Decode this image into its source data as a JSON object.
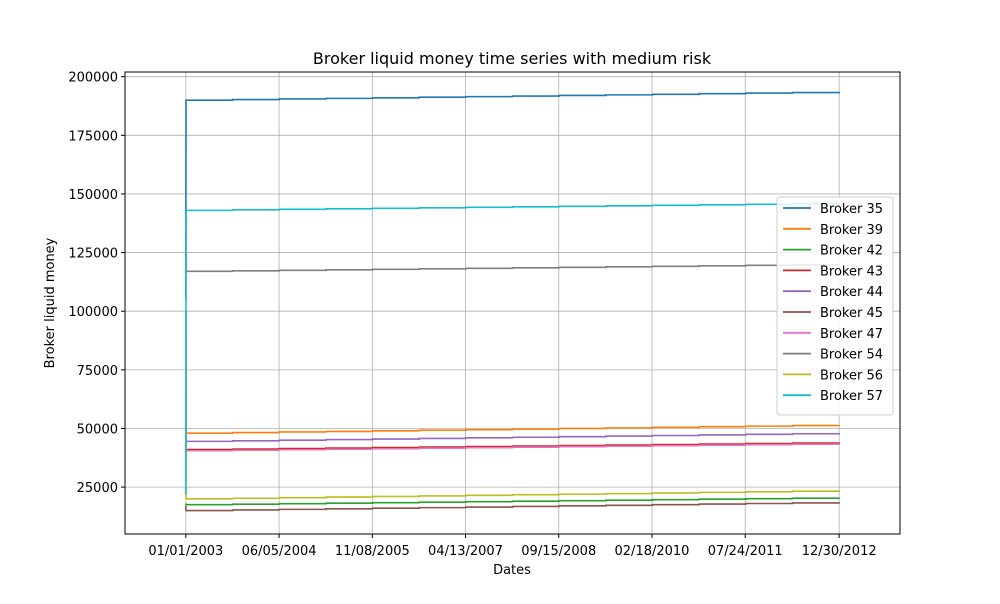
{
  "chart_data": {
    "type": "line",
    "title": "Broker liquid money time series with medium risk",
    "xlabel": "Dates",
    "ylabel": "Broker liquid money",
    "x_ticks": [
      "01/01/2003",
      "06/05/2004",
      "11/08/2005",
      "04/13/2007",
      "09/15/2008",
      "02/18/2010",
      "07/24/2011",
      "12/30/2012"
    ],
    "xlim": [
      "2002-01-26",
      "2013-12-05"
    ],
    "y_ticks": [
      "25000",
      "50000",
      "75000",
      "100000",
      "125000",
      "150000",
      "175000",
      "200000"
    ],
    "ylim": [
      5000,
      202000
    ],
    "grid": true,
    "legend_position": "center-right",
    "series": [
      {
        "name": "Broker 35",
        "color": "#1f77b4",
        "x": [
          "2003-01-01",
          "2003-01-02",
          "2012-12-30"
        ],
        "y": [
          105000,
          190000,
          193500
        ]
      },
      {
        "name": "Broker 39",
        "color": "#ff7f0e",
        "x": [
          "2003-01-01",
          "2003-01-02",
          "2012-12-30"
        ],
        "y": [
          25000,
          48000,
          51500
        ]
      },
      {
        "name": "Broker 42",
        "color": "#2ca02c",
        "x": [
          "2003-01-01",
          "2003-01-02",
          "2012-12-30"
        ],
        "y": [
          18000,
          17500,
          20500
        ]
      },
      {
        "name": "Broker 43",
        "color": "#d62728",
        "x": [
          "2003-01-01",
          "2003-01-02",
          "2012-12-30"
        ],
        "y": [
          100000,
          41000,
          44000
        ]
      },
      {
        "name": "Broker 44",
        "color": "#9467bd",
        "x": [
          "2003-01-01",
          "2003-01-02",
          "2012-12-30"
        ],
        "y": [
          92000,
          44500,
          48000
        ]
      },
      {
        "name": "Broker 45",
        "color": "#8c564b",
        "x": [
          "2003-01-01",
          "2003-01-02",
          "2012-12-30"
        ],
        "y": [
          17000,
          15000,
          18500
        ]
      },
      {
        "name": "Broker 47",
        "color": "#e377c2",
        "x": [
          "2003-01-01",
          "2003-01-02",
          "2012-12-30"
        ],
        "y": [
          98000,
          40500,
          43500
        ]
      },
      {
        "name": "Broker 54",
        "color": "#7f7f7f",
        "x": [
          "2003-01-01",
          "2003-01-02",
          "2012-12-30"
        ],
        "y": [
          125000,
          117000,
          120000
        ]
      },
      {
        "name": "Broker 56",
        "color": "#bcbd22",
        "x": [
          "2003-01-01",
          "2003-01-02",
          "2012-12-30"
        ],
        "y": [
          80000,
          20000,
          23500
        ]
      },
      {
        "name": "Broker 57",
        "color": "#17becf",
        "x": [
          "2003-01-01",
          "2003-01-02",
          "2012-12-30"
        ],
        "y": [
          22000,
          143000,
          146000
        ]
      }
    ]
  }
}
